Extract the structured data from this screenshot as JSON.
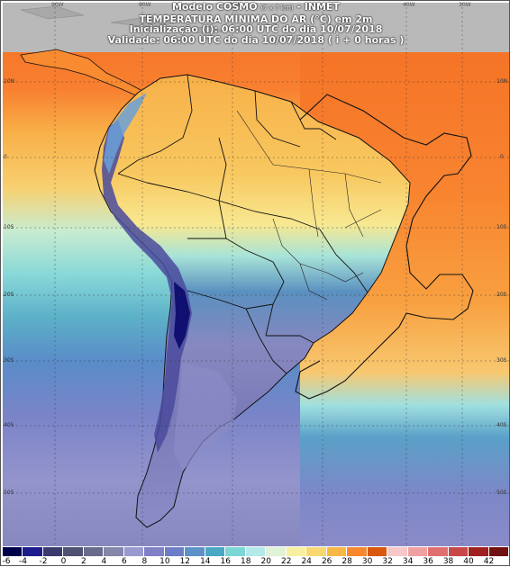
{
  "title": {
    "line1_a": "Modelo COSMO",
    "line1_small": "(7 x 7 km)",
    "line1_b": "- INMET",
    "line2": "TEMPERATURA MÍNIMA DO AR (°C) em 2m",
    "line3": "Inicialização (i): 06:00 UTC do dia 10/07/2018",
    "line4": "Validade: 06:00 UTC do dia 10/07/2018 ( i + 0 horas )"
  },
  "top_lon_labels": [
    "90W",
    "80W",
    "70W",
    "40W",
    "30W"
  ],
  "left_lat_labels": [
    "10N",
    "0",
    "10S",
    "20S",
    "30S",
    "40S",
    "50S"
  ],
  "right_lat_labels": [
    "10N",
    "0",
    "10S",
    "20S",
    "30S",
    "40S",
    "50S"
  ],
  "legend": {
    "ticks": [
      "-6",
      "-4",
      "-2",
      "0",
      "2",
      "4",
      "6",
      "8",
      "10",
      "12",
      "14",
      "16",
      "18",
      "20",
      "22",
      "24",
      "26",
      "28",
      "30",
      "32",
      "34",
      "36",
      "38",
      "40",
      "42"
    ],
    "colors": [
      "#00004a",
      "#1c1c8c",
      "#3a3a6e",
      "#505070",
      "#6a6a8a",
      "#8686aa",
      "#9a9ad0",
      "#8080c8",
      "#6c7ec8",
      "#5c92c8",
      "#4aa8c4",
      "#7cd6d6",
      "#b4eaea",
      "#e0f2d8",
      "#f8f0a0",
      "#f8d870",
      "#f8b848",
      "#f88830",
      "#d85810",
      "#f8c8c8",
      "#f0a0a0",
      "#e07070",
      "#c84848",
      "#a02020",
      "#701010"
    ]
  },
  "colors": {
    "sea_hot": "#f46e24",
    "sea_warm": "#f8a040",
    "sea_mild": "#f8c860",
    "sea_cool": "#9ce0e0",
    "sea_cold": "#5ea0c8",
    "sea_colder": "#7c88c8",
    "sea_coldest": "#8c8cc8",
    "land_cold": "#6a6aa0"
  }
}
